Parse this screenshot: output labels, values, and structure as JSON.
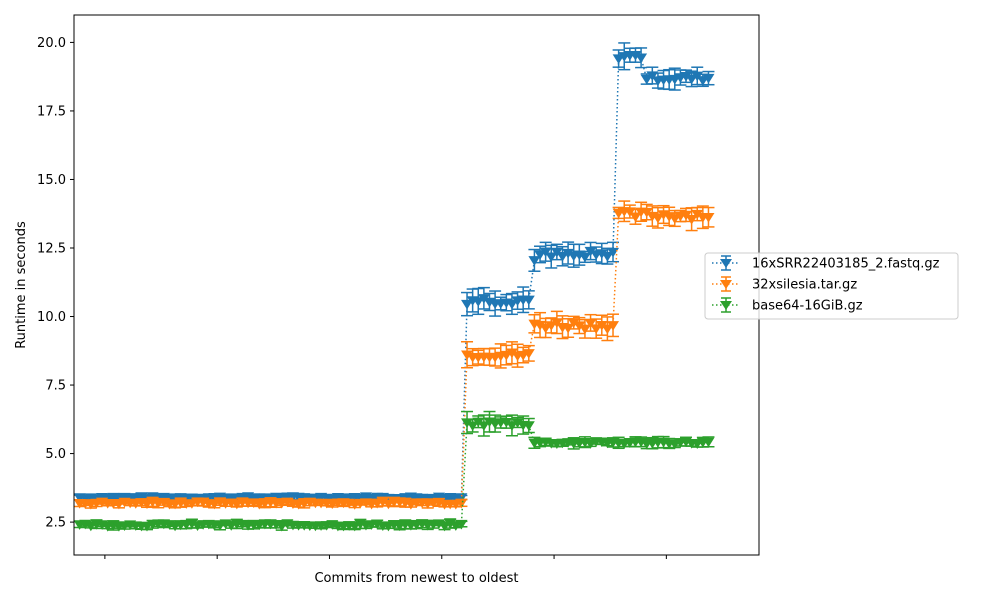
{
  "chart_data": {
    "type": "line",
    "title": "",
    "xlabel": "Commits from newest to oldest",
    "ylabel": "Runtime in seconds",
    "xlim": [
      0,
      122
    ],
    "ylim": [
      1.3,
      21.0
    ],
    "yticks": [
      2.5,
      5.0,
      7.5,
      10.0,
      12.5,
      15.0,
      17.5,
      20.0
    ],
    "ytick_labels": [
      "2.5",
      "5.0",
      "7.5",
      "10.0",
      "12.5",
      "15.0",
      "17.5",
      "20.0"
    ],
    "xticks": [
      5.5,
      25.5,
      45.5,
      65.5,
      85.5,
      105.5
    ],
    "grid": false,
    "legend_position": "right",
    "marker": "triangle-down",
    "line_style": "dotted",
    "series": [
      {
        "name": "16xSRR22403185_2.fastq.gz",
        "color": "#1f77b4",
        "segments": [
          {
            "from": 1,
            "to": 69,
            "value": 3.4,
            "err": 0.08,
            "jitter": 0.04
          },
          {
            "from": 70,
            "to": 81,
            "value": 10.6,
            "err": 0.35,
            "jitter": 0.15
          },
          {
            "from": 82,
            "to": 96,
            "value": 12.2,
            "err": 0.3,
            "jitter": 0.2
          },
          {
            "from": 97,
            "to": 101,
            "value": 19.5,
            "err": 0.35,
            "jitter": 0.1
          },
          {
            "from": 102,
            "to": 113,
            "value": 18.7,
            "err": 0.3,
            "jitter": 0.1
          }
        ]
      },
      {
        "name": "32xsilesia.tar.gz",
        "color": "#ff7f0e",
        "segments": [
          {
            "from": 1,
            "to": 69,
            "value": 3.2,
            "err": 0.12,
            "jitter": 0.05
          },
          {
            "from": 70,
            "to": 81,
            "value": 8.6,
            "err": 0.35,
            "jitter": 0.1
          },
          {
            "from": 82,
            "to": 96,
            "value": 9.7,
            "err": 0.35,
            "jitter": 0.15
          },
          {
            "from": 97,
            "to": 113,
            "value": 13.7,
            "err": 0.3,
            "jitter": 0.15
          }
        ]
      },
      {
        "name": "base64-16GiB.gz",
        "color": "#2ca02c",
        "segments": [
          {
            "from": 1,
            "to": 69,
            "value": 2.4,
            "err": 0.12,
            "jitter": 0.05
          },
          {
            "from": 70,
            "to": 81,
            "value": 6.1,
            "err": 0.3,
            "jitter": 0.1
          },
          {
            "from": 82,
            "to": 113,
            "value": 5.4,
            "err": 0.15,
            "jitter": 0.05
          }
        ]
      }
    ]
  }
}
